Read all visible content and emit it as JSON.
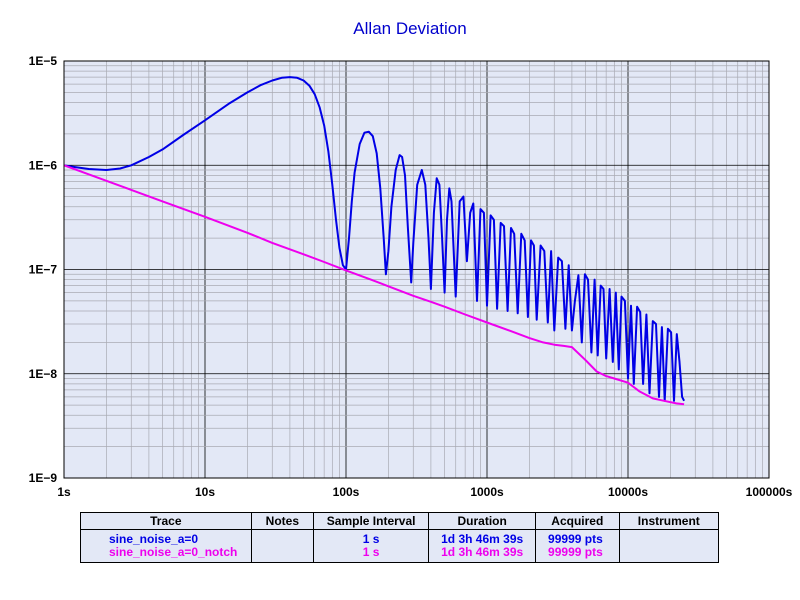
{
  "chart_data": {
    "type": "line",
    "title": "Allan Deviation",
    "xlabel": "",
    "ylabel": "",
    "x_scale": "log",
    "y_scale": "log",
    "xlim": [
      1,
      100000
    ],
    "ylim": [
      1e-09,
      1e-05
    ],
    "grid": true,
    "x_tick_labels": [
      "1s",
      "10s",
      "100s",
      "1000s",
      "10000s",
      "100000s"
    ],
    "y_tick_labels": [
      "1E−9",
      "1E−8",
      "1E−7",
      "1E−6",
      "1E−5"
    ],
    "series": [
      {
        "name": "sine_noise_a=0",
        "color": "#0000e6",
        "x": [
          1,
          1.2,
          1.5,
          2,
          2.5,
          3,
          4,
          5,
          7,
          10,
          15,
          20,
          25,
          30,
          35,
          40,
          45,
          50,
          55,
          60,
          65,
          70,
          75,
          80,
          85,
          90,
          95,
          100,
          105,
          110,
          115,
          125,
          135,
          145,
          155,
          165,
          175,
          185,
          192,
          200,
          210,
          225,
          240,
          250,
          262,
          275,
          290,
          300,
          320,
          345,
          365,
          385,
          400,
          420,
          440,
          460,
          480,
          500,
          520,
          540,
          560,
          600,
          640,
          680,
          720,
          760,
          800,
          850,
          900,
          950,
          1000,
          1060,
          1120,
          1180,
          1250,
          1320,
          1400,
          1480,
          1560,
          1650,
          1750,
          1850,
          1950,
          2050,
          2150,
          2250,
          2400,
          2550,
          2700,
          2850,
          3000,
          3200,
          3400,
          3600,
          3800,
          4000,
          4200,
          4450,
          4700,
          4950,
          5200,
          5500,
          5800,
          6100,
          6400,
          6700,
          7000,
          7400,
          7800,
          8200,
          8600,
          9000,
          9500,
          10000,
          10500,
          11000,
          11600,
          12200,
          12800,
          13500,
          14200,
          15000,
          15800,
          16600,
          17400,
          18200,
          19200,
          20200,
          21200,
          22200,
          23200,
          24200,
          25000
        ],
        "y": [
          1e-06,
          9.6e-07,
          9.2e-07,
          9e-07,
          9.3e-07,
          1e-06,
          1.2e-06,
          1.42e-06,
          1.95e-06,
          2.7e-06,
          3.95e-06,
          5e-06,
          5.9e-06,
          6.5e-06,
          6.9e-06,
          7e-06,
          6.9e-06,
          6.5e-06,
          5.8e-06,
          4.8e-06,
          3.6e-06,
          2.4e-06,
          1.35e-06,
          6.5e-07,
          3e-07,
          1.6e-07,
          1.1e-07,
          1e-07,
          2e-07,
          4.5e-07,
          8.5e-07,
          1.6e-06,
          2.05e-06,
          2.1e-06,
          1.9e-06,
          1.3e-06,
          6e-07,
          2e-07,
          9e-08,
          1.5e-07,
          4e-07,
          9e-07,
          1.25e-06,
          1.2e-06,
          8e-07,
          2.5e-07,
          7.5e-08,
          1.8e-07,
          6.5e-07,
          9e-07,
          6.5e-07,
          2e-07,
          6.5e-08,
          3.5e-07,
          7.5e-07,
          6.5e-07,
          2e-07,
          6e-08,
          3e-07,
          6e-07,
          4.5e-07,
          5.5e-08,
          4.5e-07,
          5e-07,
          1.2e-07,
          3.5e-07,
          4.3e-07,
          5e-08,
          3.8e-07,
          3.5e-07,
          4.5e-08,
          3.3e-07,
          3e-07,
          4.2e-08,
          2.8e-07,
          2.6e-07,
          4e-08,
          2.5e-07,
          2.2e-07,
          3.8e-08,
          2.2e-07,
          1.9e-07,
          3.5e-08,
          1.9e-07,
          1.7e-07,
          3.3e-08,
          1.7e-07,
          1.5e-07,
          3.1e-08,
          1.5e-07,
          2.6e-08,
          1.3e-07,
          1.2e-07,
          2.7e-08,
          1.1e-07,
          2.6e-08,
          5e-08,
          8.8e-08,
          2e-08,
          9e-08,
          8e-08,
          1.6e-08,
          8e-08,
          1.5e-08,
          7e-08,
          6.5e-08,
          1.4e-08,
          6.5e-08,
          1.3e-08,
          6e-08,
          1.1e-08,
          5.5e-08,
          5e-08,
          9e-09,
          4.5e-08,
          8e-09,
          4.4e-08,
          3.9e-08,
          8e-09,
          3.7e-08,
          6.5e-09,
          3.2e-08,
          3e-08,
          6e-09,
          2.8e-08,
          5.5e-09,
          2.7e-08,
          2.5e-08,
          5.5e-09,
          2.4e-08,
          1.3e-08,
          6e-09,
          5.5e-09
        ]
      },
      {
        "name": "sine_noise_a=0_notch",
        "color": "#ee00ee",
        "x": [
          1,
          2,
          3,
          5,
          10,
          20,
          30,
          50,
          70,
          100,
          150,
          200,
          300,
          400,
          500,
          700,
          1000,
          1500,
          2000,
          2500,
          3000,
          3500,
          4000,
          5000,
          6000,
          7000,
          8000,
          10000,
          12000,
          15000,
          18000,
          22000,
          25000
        ],
        "y": [
          1e-06,
          7.1e-07,
          5.8e-07,
          4.5e-07,
          3.2e-07,
          2.25e-07,
          1.8e-07,
          1.4e-07,
          1.18e-07,
          9.8e-08,
          8e-08,
          6.9e-08,
          5.6e-08,
          4.9e-08,
          4.4e-08,
          3.7e-08,
          3.1e-08,
          2.55e-08,
          2.2e-08,
          2e-08,
          1.9e-08,
          1.85e-08,
          1.8e-08,
          1.35e-08,
          1.05e-08,
          9.5e-09,
          9e-09,
          8.2e-09,
          6.8e-09,
          5.8e-09,
          5.5e-09,
          5.2e-09,
          5.1e-09
        ]
      }
    ]
  },
  "legend_table": {
    "headers": [
      "Trace",
      "Notes",
      "Sample Interval",
      "Duration",
      "Acquired",
      "Instrument"
    ],
    "rows": [
      {
        "trace": "sine_noise_a=0",
        "notes": "",
        "sample_interval": "1 s",
        "duration": "1d 3h 46m 39s",
        "acquired": "99999 pts",
        "instrument": "",
        "color": "#0000e6"
      },
      {
        "trace": "sine_noise_a=0_notch",
        "notes": "",
        "sample_interval": "1 s",
        "duration": "1d 3h 46m 39s",
        "acquired": "99999 pts",
        "instrument": "",
        "color": "#ee00ee"
      }
    ]
  }
}
